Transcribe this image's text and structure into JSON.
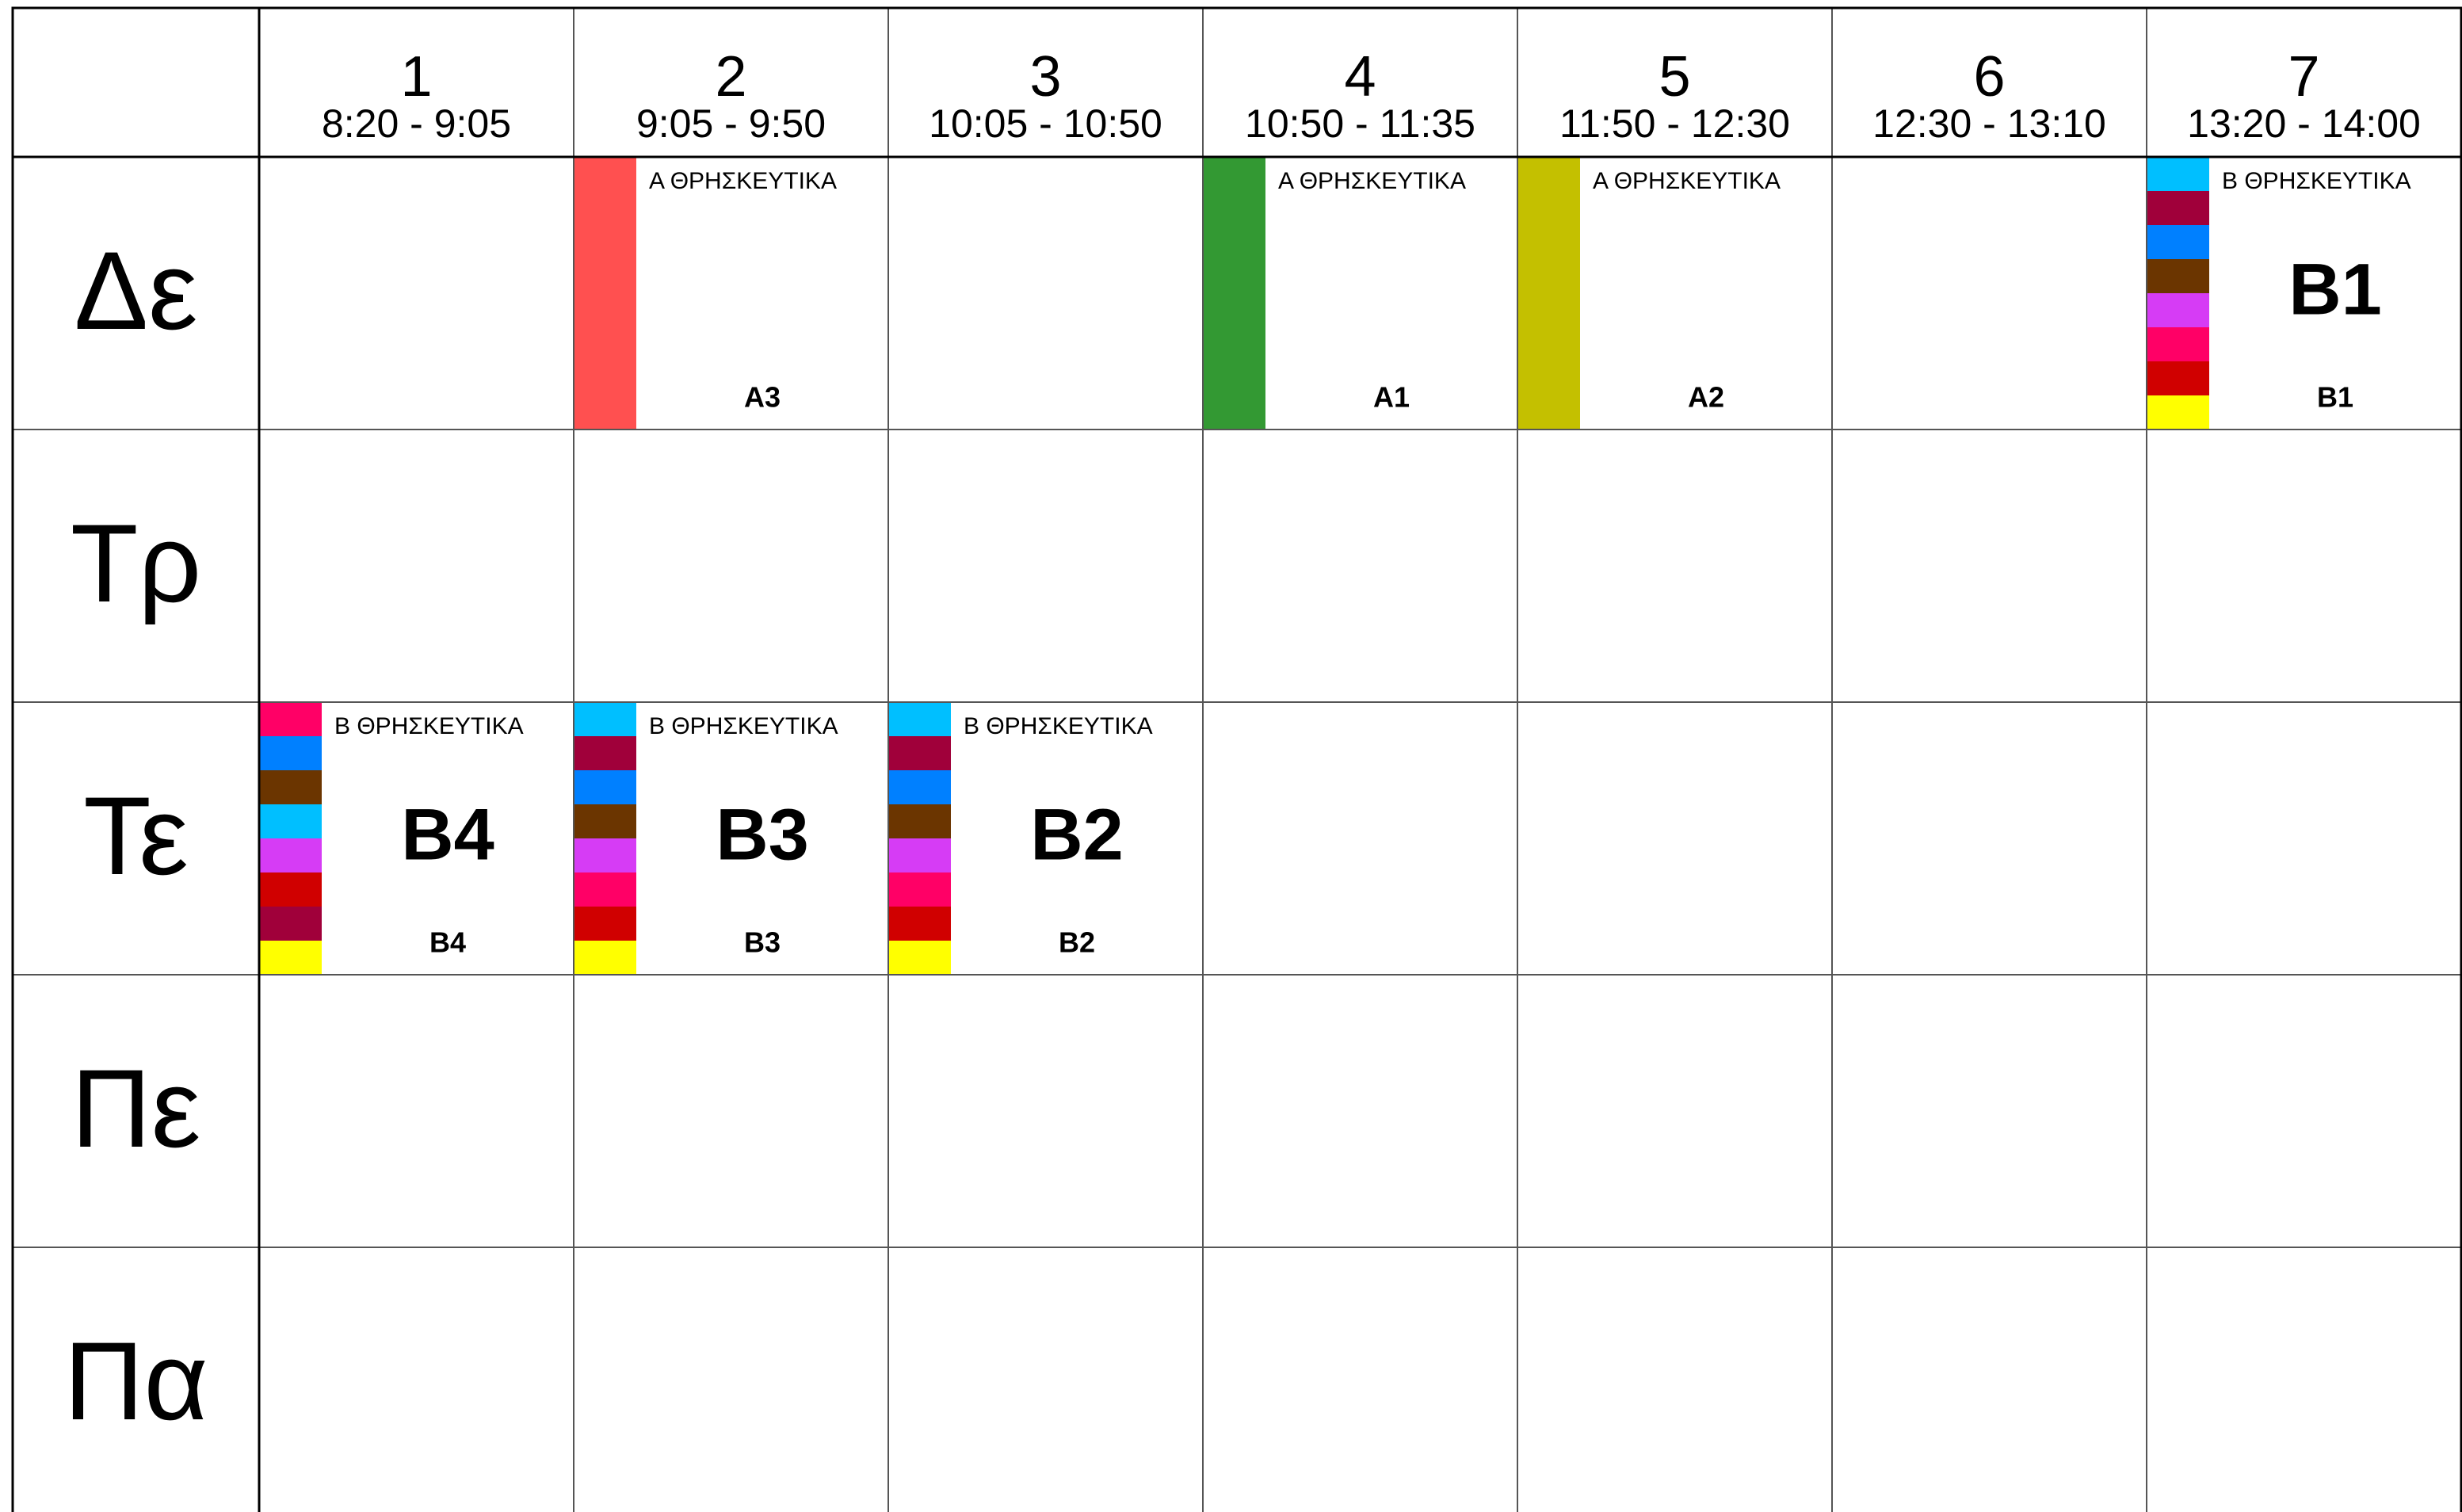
{
  "timetable": {
    "periods": [
      {
        "number": "1",
        "time": "8:20 - 9:05"
      },
      {
        "number": "2",
        "time": "9:05 - 9:50"
      },
      {
        "number": "3",
        "time": "10:05 - 10:50"
      },
      {
        "number": "4",
        "time": "10:50 - 11:35"
      },
      {
        "number": "5",
        "time": "11:50 - 12:30"
      },
      {
        "number": "6",
        "time": "12:30 - 13:10"
      },
      {
        "number": "7",
        "time": "13:20 - 14:00"
      }
    ],
    "rows": [
      {
        "day": "Δε",
        "cells": [
          null,
          {
            "subject": "Α ΘΡΗΣΚΕΥΤΙΚΑ",
            "class": "Α3",
            "colors": [
              "#ff5050"
            ]
          },
          null,
          {
            "subject": "Α ΘΡΗΣΚΕΥΤΙΚΑ",
            "class": "Α1",
            "colors": [
              "#339933"
            ]
          },
          {
            "subject": "Α ΘΡΗΣΚΕΥΤΙΚΑ",
            "class": "Α2",
            "colors": [
              "#c4c000"
            ]
          },
          null,
          {
            "subject": "Β ΘΡΗΣΚΕΥΤΙΚΑ",
            "title": "Β1",
            "class": "Β1",
            "colors": [
              "#00bfff",
              "#a0003a",
              "#0080ff",
              "#6b3500",
              "#d63cf5",
              "#ff0066",
              "#d00000",
              "#ffff00"
            ]
          }
        ]
      },
      {
        "day": "Τρ",
        "cells": [
          null,
          null,
          null,
          null,
          null,
          null,
          null
        ]
      },
      {
        "day": "Τε",
        "cells": [
          {
            "subject": "Β ΘΡΗΣΚΕΥΤΙΚΑ",
            "title": "Β4",
            "class": "Β4",
            "colors": [
              "#ff0066",
              "#0080ff",
              "#6b3500",
              "#00bfff",
              "#d63cf5",
              "#d00000",
              "#a0003a",
              "#ffff00"
            ]
          },
          {
            "subject": "Β ΘΡΗΣΚΕΥΤΙΚΑ",
            "title": "Β3",
            "class": "Β3",
            "colors": [
              "#00bfff",
              "#a0003a",
              "#0080ff",
              "#6b3500",
              "#d63cf5",
              "#ff0066",
              "#d00000",
              "#ffff00"
            ]
          },
          {
            "subject": "Β ΘΡΗΣΚΕΥΤΙΚΑ",
            "title": "Β2",
            "class": "Β2",
            "colors": [
              "#00bfff",
              "#a0003a",
              "#0080ff",
              "#6b3500",
              "#d63cf5",
              "#ff0066",
              "#d00000",
              "#ffff00"
            ]
          },
          null,
          null,
          null,
          null
        ]
      },
      {
        "day": "Πε",
        "cells": [
          null,
          null,
          null,
          null,
          null,
          null,
          null
        ]
      },
      {
        "day": "Πα",
        "cells": [
          null,
          null,
          null,
          null,
          null,
          null,
          null
        ]
      }
    ]
  }
}
